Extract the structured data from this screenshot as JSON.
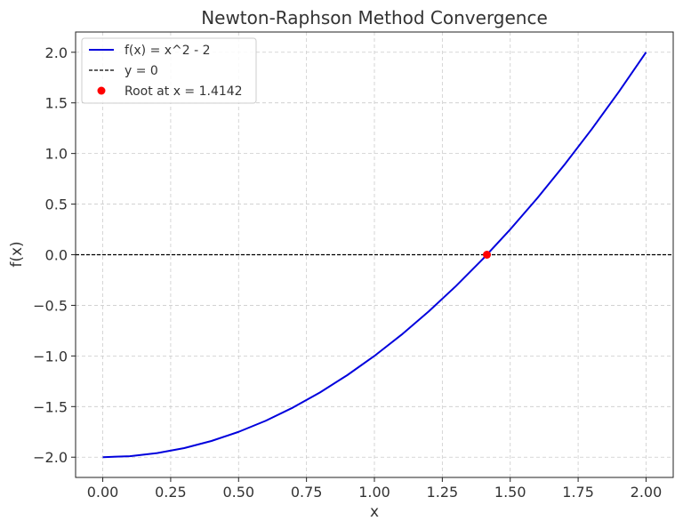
{
  "chart_data": {
    "type": "line",
    "title": "Newton-Raphson Method Convergence",
    "xlabel": "x",
    "ylabel": "f(x)",
    "xlim": [
      -0.1,
      2.1
    ],
    "ylim": [
      -2.2,
      2.2
    ],
    "x_ticks": [
      0.0,
      0.25,
      0.5,
      0.75,
      1.0,
      1.25,
      1.5,
      1.75,
      2.0
    ],
    "x_tick_labels": [
      "0.00",
      "0.25",
      "0.50",
      "0.75",
      "1.00",
      "1.25",
      "1.50",
      "1.75",
      "2.00"
    ],
    "y_ticks": [
      -2.0,
      -1.5,
      -1.0,
      -0.5,
      0.0,
      0.5,
      1.0,
      1.5,
      2.0
    ],
    "y_tick_labels": [
      "−2.0",
      "−1.5",
      "−1.0",
      "−0.5",
      "0.0",
      "0.5",
      "1.0",
      "1.5",
      "2.0"
    ],
    "grid": true,
    "legend_position": "top-left",
    "series": [
      {
        "name": "f(x) = x^2 - 2",
        "kind": "line",
        "color": "#0000dd",
        "x": [
          0.0,
          0.1,
          0.2,
          0.3,
          0.4,
          0.5,
          0.6,
          0.7,
          0.8,
          0.9,
          1.0,
          1.1,
          1.2,
          1.3,
          1.4,
          1.5,
          1.6,
          1.7,
          1.8,
          1.9,
          2.0
        ],
        "y": [
          -2.0,
          -1.99,
          -1.96,
          -1.91,
          -1.84,
          -1.75,
          -1.64,
          -1.51,
          -1.36,
          -1.19,
          -1.0,
          -0.79,
          -0.56,
          -0.31,
          -0.04,
          0.25,
          0.56,
          0.89,
          1.24,
          1.61,
          2.0
        ]
      },
      {
        "name": "y = 0",
        "kind": "dashed-line",
        "color": "#000000",
        "x": [
          -0.1,
          2.1
        ],
        "y": [
          0.0,
          0.0
        ]
      },
      {
        "name": "Root at x = 1.4142",
        "kind": "point",
        "color": "#ff0000",
        "x": [
          1.4142
        ],
        "y": [
          0.0
        ]
      }
    ]
  }
}
